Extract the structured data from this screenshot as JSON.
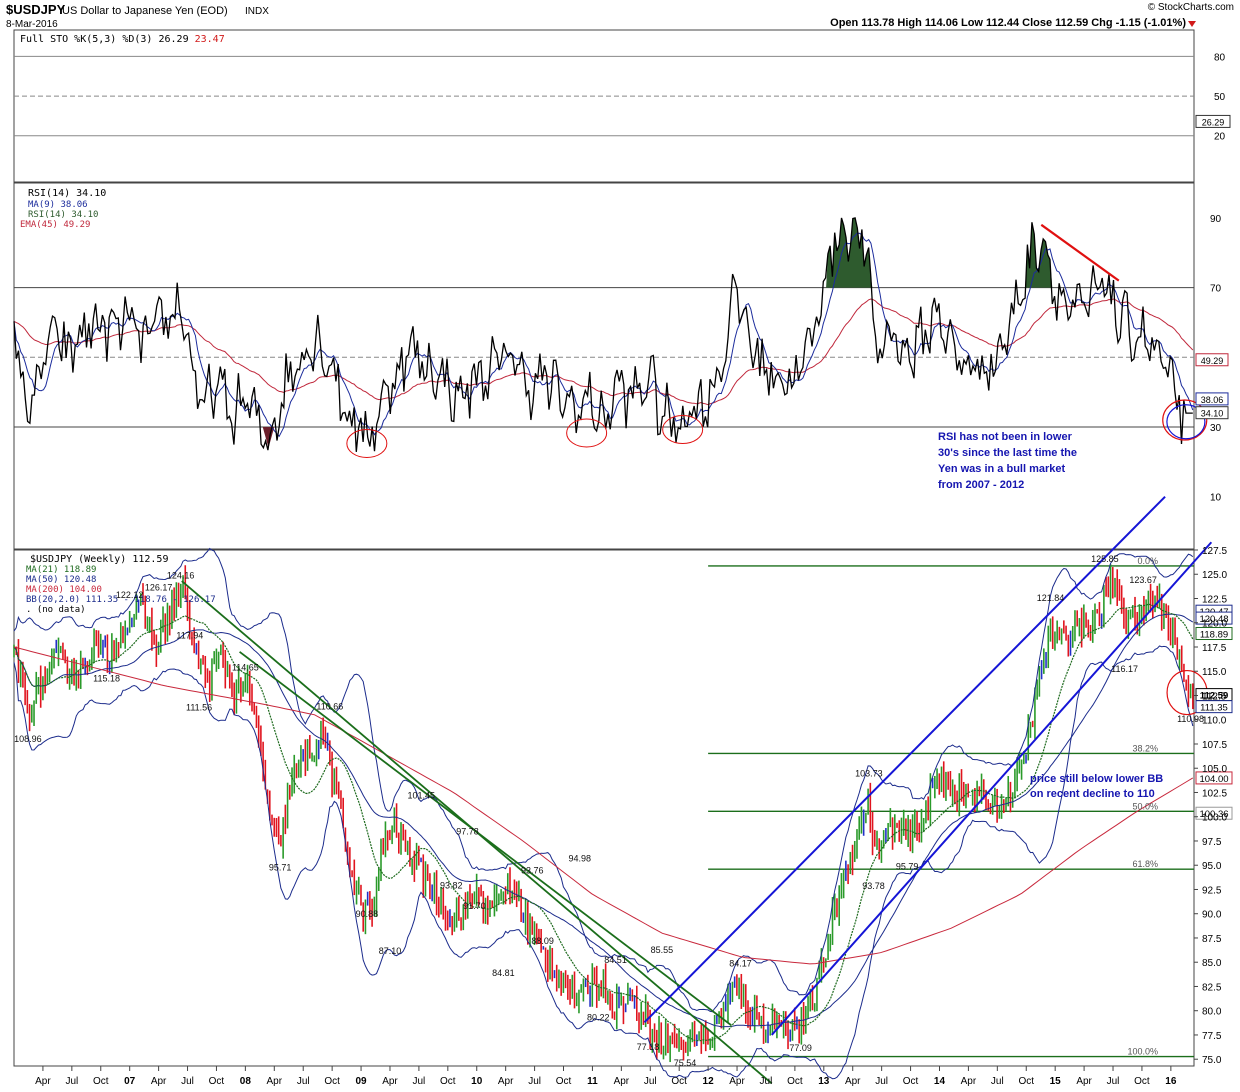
{
  "header": {
    "symbol": "$USDJPY",
    "name": "US Dollar to Japanese Yen (EOD)",
    "exchange": "INDX",
    "date": "8-Mar-2016",
    "watermark": "© StockCharts.com",
    "ohlc": "Open 113.78  High 114.06  Low 112.44  Close 112.59  Chg -1.15 (-1.01%)"
  },
  "colors": {
    "price_up": "#2a9a2a",
    "price_down": "#e0141e",
    "price_flat": "#2230c8",
    "ma21": "#1f6b1f",
    "ma200": "#c8283c",
    "bollinger": "#1c2c8c",
    "trend_line": "#1515d6",
    "down_trend": "#1b6e1b",
    "fib_line": "#1b6e1b",
    "rsi_line": "#000000",
    "rsi_ma": "#1c2c9c",
    "rsi_ema": "#c0283c",
    "rsi_fill": "#2e5b2e",
    "sto_k": "#000000",
    "sto_d": "#d11a1a",
    "annotation": "#1515b0",
    "highlight": "#e01010"
  },
  "x_axis_labels": [
    "Apr",
    "Jul",
    "Oct",
    "07",
    "Apr",
    "Jul",
    "Oct",
    "08",
    "Apr",
    "Jul",
    "Oct",
    "09",
    "Apr",
    "Jul",
    "Oct",
    "10",
    "Apr",
    "Jul",
    "Oct",
    "11",
    "Apr",
    "Jul",
    "Oct",
    "12",
    "Apr",
    "Jul",
    "Oct",
    "13",
    "Apr",
    "Jul",
    "Oct",
    "14",
    "Apr",
    "Jul",
    "Oct",
    "15",
    "Apr",
    "Jul",
    "Oct",
    "16"
  ],
  "chart_data": [
    {
      "type": "line",
      "panel": "stochastic",
      "legend": "Full STO %K(5,3) %D(3)",
      "k_value": "26.29",
      "d_value": "23.47",
      "yticks": [
        "80",
        "50",
        "20"
      ],
      "value_badge": "26.29"
    },
    {
      "type": "line",
      "panel": "rsi",
      "title": "RSI(14) 34.10",
      "legend": [
        "MA(9) 38.06",
        "RSI(14) 34.10",
        "EMA(45) 49.29"
      ],
      "yticks": [
        "90",
        "70",
        "30",
        "10"
      ],
      "value_badges": [
        "49.29",
        "38.06",
        "34.10"
      ],
      "annotation": [
        "RSI has not been in lower",
        "30's since the last time the",
        "Yen was in a bull market",
        "from 2007 - 2012"
      ]
    },
    {
      "type": "line",
      "panel": "price",
      "title": "$USDJPY (Weekly) 112.59",
      "legend": [
        "MA(21) 118.89",
        "MA(50) 120.48",
        "MA(200) 104.00",
        "BB(20,2.0) 111.35 - 118.76 - 126.17",
        ". (no data)"
      ],
      "ylim": [
        75.0,
        127.5
      ],
      "yticks": [
        "127.5",
        "125.0",
        "122.5",
        "120.0",
        "117.5",
        "115.0",
        "112.5",
        "110.0",
        "107.5",
        "105.0",
        "102.5",
        "100.0",
        "97.5",
        "95.0",
        "92.5",
        "90.0",
        "87.5",
        "85.0",
        "82.5",
        "80.0",
        "77.5",
        "75.0"
      ],
      "value_badges": [
        "120.47",
        "120.48",
        "118.89",
        "112.59",
        "111.35",
        "104.00",
        "100.36"
      ],
      "fib_labels": [
        "0.0%",
        "38.2%",
        "50.0%",
        "61.8%",
        "100.0%"
      ],
      "fib_levels": [
        125.86,
        106.53,
        100.56,
        94.59,
        75.27
      ],
      "annotations": [
        {
          "text": "124.16",
          "x": 2007.44,
          "y": 124.16,
          "pos": "above"
        },
        {
          "text": "122.12",
          "x": 2007.0,
          "y": 122.12,
          "pos": "above"
        },
        {
          "text": "126.17",
          "x": 2007.25,
          "y": 122.9,
          "pos": "above"
        },
        {
          "text": "117.94",
          "x": 2007.52,
          "y": 117.94,
          "pos": "above"
        },
        {
          "text": "115.18",
          "x": 2006.8,
          "y": 115.18,
          "pos": "below"
        },
        {
          "text": "114.65",
          "x": 2008.0,
          "y": 114.65,
          "pos": "above"
        },
        {
          "text": "111.56",
          "x": 2007.6,
          "y": 112.2,
          "pos": "below"
        },
        {
          "text": "110.66",
          "x": 2008.73,
          "y": 110.66,
          "pos": "above"
        },
        {
          "text": "108.96",
          "x": 2006.12,
          "y": 108.96,
          "pos": "below"
        },
        {
          "text": "101.45",
          "x": 2009.52,
          "y": 101.45,
          "pos": "above"
        },
        {
          "text": "97.78",
          "x": 2009.92,
          "y": 97.78,
          "pos": "above"
        },
        {
          "text": "95.71",
          "x": 2008.3,
          "y": 95.71,
          "pos": "below"
        },
        {
          "text": "93.82",
          "x": 2009.78,
          "y": 93.82,
          "pos": "below"
        },
        {
          "text": "93.76",
          "x": 2010.48,
          "y": 93.76,
          "pos": "above"
        },
        {
          "text": "94.98",
          "x": 2010.89,
          "y": 94.98,
          "pos": "above"
        },
        {
          "text": "91.70",
          "x": 2009.98,
          "y": 91.7,
          "pos": "below"
        },
        {
          "text": "90.88",
          "x": 2009.05,
          "y": 90.88,
          "pos": "below"
        },
        {
          "text": "88.09",
          "x": 2010.57,
          "y": 88.09,
          "pos": "below"
        },
        {
          "text": "87.10",
          "x": 2009.25,
          "y": 87.1,
          "pos": "below"
        },
        {
          "text": "84.81",
          "x": 2010.23,
          "y": 84.81,
          "pos": "below"
        },
        {
          "text": "84.51",
          "x": 2011.2,
          "y": 84.51,
          "pos": "above"
        },
        {
          "text": "85.55",
          "x": 2011.6,
          "y": 85.55,
          "pos": "above"
        },
        {
          "text": "80.22",
          "x": 2011.05,
          "y": 80.22,
          "pos": "below"
        },
        {
          "text": "84.17",
          "x": 2012.28,
          "y": 84.17,
          "pos": "above"
        },
        {
          "text": "77.18",
          "x": 2011.48,
          "y": 77.18,
          "pos": "below"
        },
        {
          "text": "77.09",
          "x": 2012.8,
          "y": 77.09,
          "pos": "below"
        },
        {
          "text": "75.54",
          "x": 2011.8,
          "y": 75.54,
          "pos": "below"
        },
        {
          "text": "103.73",
          "x": 2013.39,
          "y": 103.73,
          "pos": "above"
        },
        {
          "text": "93.78",
          "x": 2013.43,
          "y": 93.78,
          "pos": "below"
        },
        {
          "text": "95.79",
          "x": 2013.72,
          "y": 95.79,
          "pos": "below"
        },
        {
          "text": "121.84",
          "x": 2014.96,
          "y": 121.84,
          "pos": "above"
        },
        {
          "text": "125.85",
          "x": 2015.43,
          "y": 125.85,
          "pos": "above"
        },
        {
          "text": "123.67",
          "x": 2015.76,
          "y": 123.67,
          "pos": "above"
        },
        {
          "text": "116.17",
          "x": 2015.6,
          "y": 116.17,
          "pos": "below"
        },
        {
          "text": "110.98",
          "x": 2016.17,
          "y": 110.98,
          "pos": "below"
        }
      ],
      "price_annotation": [
        "price still below lower BB",
        "on recent decline to 110"
      ],
      "x_range": [
        2006.0,
        2016.2
      ],
      "weekly_anchors": [
        [
          2006.0,
          117.5
        ],
        [
          2006.12,
          111.0
        ],
        [
          2006.25,
          114.0
        ],
        [
          2006.4,
          116.5
        ],
        [
          2006.55,
          114.5
        ],
        [
          2006.7,
          118.0
        ],
        [
          2006.8,
          116.0
        ],
        [
          2006.95,
          119.5
        ],
        [
          2007.1,
          121.5
        ],
        [
          2007.22,
          117.5
        ],
        [
          2007.35,
          121.0
        ],
        [
          2007.46,
          123.8
        ],
        [
          2007.55,
          117.5
        ],
        [
          2007.68,
          114.0
        ],
        [
          2007.78,
          117.0
        ],
        [
          2007.9,
          113.0
        ],
        [
          2008.0,
          114.0
        ],
        [
          2008.12,
          108.0
        ],
        [
          2008.22,
          99.0
        ],
        [
          2008.3,
          97.0
        ],
        [
          2008.4,
          104.0
        ],
        [
          2008.55,
          106.5
        ],
        [
          2008.7,
          108.5
        ],
        [
          2008.75,
          104.0
        ],
        [
          2008.85,
          99.0
        ],
        [
          2008.93,
          93.5
        ],
        [
          2009.0,
          90.5
        ],
        [
          2009.1,
          90.0
        ],
        [
          2009.2,
          97.5
        ],
        [
          2009.3,
          99.0
        ],
        [
          2009.42,
          96.0
        ],
        [
          2009.55,
          94.0
        ],
        [
          2009.65,
          92.0
        ],
        [
          2009.78,
          89.5
        ],
        [
          2009.92,
          90.5
        ],
        [
          2010.0,
          92.5
        ],
        [
          2010.12,
          90.0
        ],
        [
          2010.25,
          93.0
        ],
        [
          2010.35,
          92.0
        ],
        [
          2010.45,
          88.5
        ],
        [
          2010.6,
          85.5
        ],
        [
          2010.75,
          83.0
        ],
        [
          2010.88,
          81.0
        ],
        [
          2011.0,
          83.0
        ],
        [
          2011.1,
          82.5
        ],
        [
          2011.2,
          80.5
        ],
        [
          2011.3,
          81.5
        ],
        [
          2011.45,
          79.5
        ],
        [
          2011.55,
          77.5
        ],
        [
          2011.65,
          77.0
        ],
        [
          2011.8,
          76.5
        ],
        [
          2011.9,
          77.8
        ],
        [
          2012.0,
          77.0
        ],
        [
          2012.1,
          79.0
        ],
        [
          2012.22,
          82.5
        ],
        [
          2012.35,
          80.0
        ],
        [
          2012.5,
          78.5
        ],
        [
          2012.62,
          79.0
        ],
        [
          2012.75,
          78.0
        ],
        [
          2012.85,
          79.5
        ],
        [
          2012.95,
          82.5
        ],
        [
          2013.05,
          88.0
        ],
        [
          2013.15,
          93.0
        ],
        [
          2013.3,
          98.5
        ],
        [
          2013.38,
          101.5
        ],
        [
          2013.45,
          96.0
        ],
        [
          2013.58,
          99.0
        ],
        [
          2013.7,
          98.0
        ],
        [
          2013.82,
          98.5
        ],
        [
          2013.95,
          103.0
        ],
        [
          2014.05,
          104.0
        ],
        [
          2014.15,
          102.0
        ],
        [
          2014.3,
          102.5
        ],
        [
          2014.45,
          101.5
        ],
        [
          2014.58,
          101.7
        ],
        [
          2014.7,
          104.5
        ],
        [
          2014.78,
          109.0
        ],
        [
          2014.86,
          114.0
        ],
        [
          2014.95,
          119.0
        ],
        [
          2015.05,
          118.0
        ],
        [
          2015.18,
          120.0
        ],
        [
          2015.3,
          119.5
        ],
        [
          2015.4,
          121.0
        ],
        [
          2015.45,
          124.5
        ],
        [
          2015.55,
          123.0
        ],
        [
          2015.62,
          120.5
        ],
        [
          2015.72,
          120.0
        ],
        [
          2015.82,
          122.5
        ],
        [
          2015.92,
          121.5
        ],
        [
          2016.0,
          119.5
        ],
        [
          2016.05,
          117.0
        ],
        [
          2016.1,
          115.5
        ],
        [
          2016.15,
          112.5
        ],
        [
          2016.19,
          112.6
        ]
      ],
      "rsi_anchors": [
        [
          2006.0,
          55
        ],
        [
          2006.08,
          42
        ],
        [
          2006.15,
          35
        ],
        [
          2006.25,
          48
        ],
        [
          2006.35,
          58
        ],
        [
          2006.45,
          50
        ],
        [
          2006.55,
          55
        ],
        [
          2006.7,
          60
        ],
        [
          2006.85,
          57
        ],
        [
          2007.0,
          62
        ],
        [
          2007.1,
          53
        ],
        [
          2007.22,
          58
        ],
        [
          2007.35,
          62
        ],
        [
          2007.45,
          65
        ],
        [
          2007.55,
          46
        ],
        [
          2007.62,
          34
        ],
        [
          2007.75,
          43
        ],
        [
          2007.88,
          33
        ],
        [
          2008.0,
          38
        ],
        [
          2008.12,
          30
        ],
        [
          2008.2,
          26
        ],
        [
          2008.35,
          42
        ],
        [
          2008.5,
          52
        ],
        [
          2008.62,
          55
        ],
        [
          2008.75,
          48
        ],
        [
          2008.85,
          36
        ],
        [
          2008.95,
          30
        ],
        [
          2009.05,
          27
        ],
        [
          2009.15,
          34
        ],
        [
          2009.3,
          46
        ],
        [
          2009.42,
          52
        ],
        [
          2009.55,
          48
        ],
        [
          2009.7,
          44
        ],
        [
          2009.85,
          38
        ],
        [
          2010.0,
          44
        ],
        [
          2010.15,
          47
        ],
        [
          2010.3,
          52
        ],
        [
          2010.45,
          41
        ],
        [
          2010.58,
          44
        ],
        [
          2010.7,
          40
        ],
        [
          2010.85,
          35
        ],
        [
          2011.0,
          38
        ],
        [
          2011.1,
          30
        ],
        [
          2011.2,
          42
        ],
        [
          2011.35,
          38
        ],
        [
          2011.5,
          45
        ],
        [
          2011.6,
          33
        ],
        [
          2011.72,
          31
        ],
        [
          2011.85,
          35
        ],
        [
          2012.0,
          38
        ],
        [
          2012.15,
          52
        ],
        [
          2012.22,
          70
        ],
        [
          2012.32,
          60
        ],
        [
          2012.45,
          48
        ],
        [
          2012.6,
          45
        ],
        [
          2012.75,
          43
        ],
        [
          2012.9,
          55
        ],
        [
          2013.0,
          72
        ],
        [
          2013.08,
          82
        ],
        [
          2013.2,
          88
        ],
        [
          2013.3,
          85
        ],
        [
          2013.38,
          78
        ],
        [
          2013.45,
          52
        ],
        [
          2013.6,
          58
        ],
        [
          2013.72,
          50
        ],
        [
          2013.85,
          55
        ],
        [
          2014.0,
          64
        ],
        [
          2014.1,
          52
        ],
        [
          2014.2,
          48
        ],
        [
          2014.35,
          47
        ],
        [
          2014.5,
          50
        ],
        [
          2014.62,
          60
        ],
        [
          2014.72,
          72
        ],
        [
          2014.8,
          80
        ],
        [
          2014.88,
          86
        ],
        [
          2014.96,
          75
        ],
        [
          2015.05,
          66
        ],
        [
          2015.2,
          62
        ],
        [
          2015.35,
          68
        ],
        [
          2015.45,
          72
        ],
        [
          2015.55,
          60
        ],
        [
          2015.65,
          58
        ],
        [
          2015.8,
          55
        ],
        [
          2015.92,
          48
        ],
        [
          2016.0,
          42
        ],
        [
          2016.06,
          38
        ],
        [
          2016.12,
          33
        ],
        [
          2016.19,
          34
        ]
      ],
      "sto_cycles": 58
    }
  ]
}
